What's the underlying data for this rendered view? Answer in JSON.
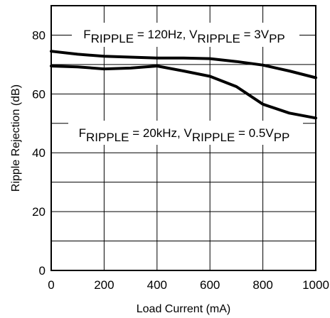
{
  "chart_data": {
    "type": "line",
    "xlabel": "Load Current (mA)",
    "ylabel": "Ripple Rejection (dB)",
    "xlim": [
      0,
      1000
    ],
    "ylim": [
      0,
      90
    ],
    "xticks": [
      0,
      200,
      400,
      600,
      800,
      1000
    ],
    "yticks": [
      0,
      20,
      40,
      60,
      80
    ],
    "ygrid": [
      0,
      10,
      20,
      30,
      40,
      50,
      60,
      70,
      80,
      90
    ],
    "grid": true,
    "legend": "none",
    "series": [
      {
        "x": [
          0,
          100,
          200,
          300,
          400,
          500,
          600,
          700,
          800,
          900,
          1000
        ],
        "y": [
          74.5,
          73.5,
          72.8,
          72.5,
          72.2,
          72.2,
          72.0,
          71.0,
          69.8,
          67.8,
          65.5
        ]
      },
      {
        "x": [
          0,
          100,
          200,
          300,
          400,
          500,
          600,
          700,
          800,
          900,
          1000
        ],
        "y": [
          69.5,
          69.2,
          68.5,
          68.8,
          69.5,
          67.8,
          66.0,
          62.5,
          56.5,
          53.5,
          51.8
        ]
      }
    ],
    "annotations": [
      {
        "parts": [
          {
            "t": "F",
            "sub": false
          },
          {
            "t": "RIPPLE",
            "sub": true
          },
          {
            "t": " = 120Hz, V",
            "sub": false
          },
          {
            "t": "RIPPLE",
            "sub": true
          },
          {
            "t": " = 3V",
            "sub": false
          },
          {
            "t": "PP",
            "sub": true
          }
        ]
      },
      {
        "parts": [
          {
            "t": "F",
            "sub": false
          },
          {
            "t": "RIPPLE",
            "sub": true
          },
          {
            "t": " = 20kHz, V",
            "sub": false
          },
          {
            "t": "RIPPLE",
            "sub": true
          },
          {
            "t": " = 0.5V",
            "sub": false
          },
          {
            "t": "PP",
            "sub": true
          }
        ]
      }
    ]
  }
}
